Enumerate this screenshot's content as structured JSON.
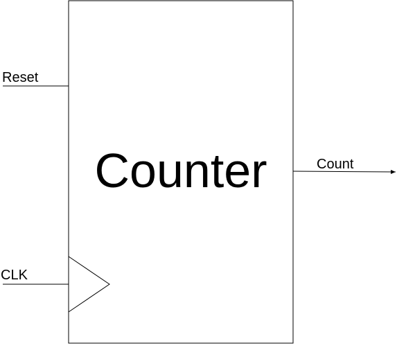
{
  "diagram": {
    "block": {
      "title": "Counter"
    },
    "inputs": {
      "reset": "Reset",
      "clock": "CLK"
    },
    "outputs": {
      "count": "Count"
    },
    "colors": {
      "stroke": "#000000",
      "background": "#ffffff"
    }
  }
}
